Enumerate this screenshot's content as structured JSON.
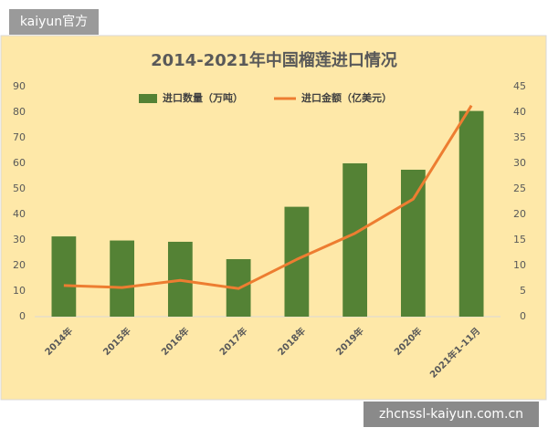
{
  "chart_data": {
    "type": "combo",
    "title": "2014-2021年中国榴莲进口情况",
    "categories": [
      "2014年",
      "2015年",
      "2016年",
      "2017年",
      "2018年",
      "2019年",
      "2020年",
      "2021年1-11月"
    ],
    "series": [
      {
        "name": "进口数量（万吨）",
        "type": "bar",
        "axis": "y",
        "color": "#548235",
        "values": [
          31.4,
          29.8,
          29.3,
          22.5,
          43,
          60,
          57.5,
          80.5
        ]
      },
      {
        "name": "进口金额（亿美元）",
        "type": "line",
        "axis": "y2",
        "color": "#ed7d31",
        "values": [
          6.1,
          5.7,
          7.1,
          5.5,
          11.2,
          16.3,
          23,
          41.3
        ]
      }
    ],
    "ylim": [
      0,
      90
    ],
    "yticks": [
      0,
      10,
      20,
      30,
      40,
      50,
      60,
      70,
      80,
      90
    ],
    "y2lim": [
      0,
      45
    ],
    "y2ticks": [
      0,
      5,
      10,
      15,
      20,
      25,
      30,
      35,
      40,
      45
    ],
    "grid": false,
    "legend": "top"
  },
  "watermarks": [
    "kaiyun官方",
    "zhcnssl-kaiyun.com.cn"
  ]
}
